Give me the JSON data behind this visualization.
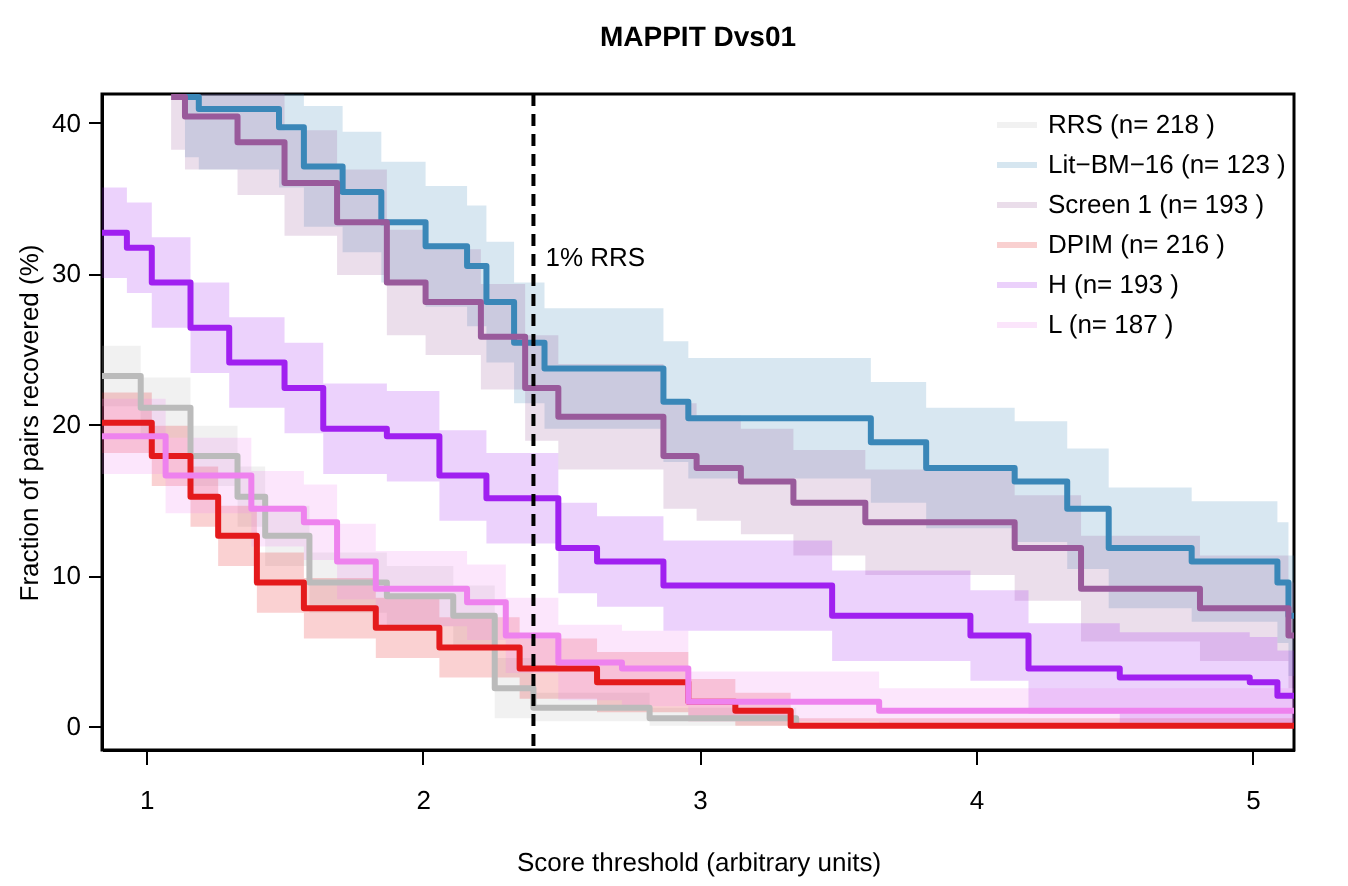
{
  "chart_data": {
    "type": "step",
    "title": "MAPPIT Dvs01",
    "xlabel": "Score threshold (arbitrary units)",
    "ylabel": "Fraction of pairs recovered (%)",
    "xlim": [
      0.84,
      5.15
    ],
    "ylim": [
      -1.6,
      41.9
    ],
    "xticks": [
      1,
      2,
      3,
      4,
      5
    ],
    "yticks": [
      0,
      10,
      20,
      30,
      40
    ],
    "grid": false,
    "legend": "top right",
    "line_style": "solid",
    "marker": "none",
    "ref_lines": [
      {
        "axis": "x",
        "value": 2.4,
        "label": "1% RRS",
        "line_style": "dashed",
        "color": "#000000"
      }
    ],
    "series": [
      {
        "name": "RRS (n= 218 )",
        "color": "#bbbbbb",
        "x": [
          0.84,
          0.98,
          1.16,
          1.33,
          1.43,
          1.59,
          1.87,
          2.11,
          2.26,
          2.4,
          2.82,
          3.35
        ],
        "values": [
          23.2,
          21.1,
          17.9,
          15.2,
          12.6,
          9.5,
          8.6,
          7.3,
          2.5,
          1.2,
          0.5,
          0
        ],
        "upper": [
          25.2,
          23.1,
          19.9,
          17.2,
          14.6,
          11.5,
          10.6,
          9.3,
          4.5,
          2.2,
          1.2,
          0.5
        ],
        "lower": [
          21.2,
          19.1,
          15.9,
          13.2,
          10.6,
          7.5,
          6.6,
          5.3,
          0.5,
          0.3,
          0,
          0
        ]
      },
      {
        "name": "Lit−BM−16 (n= 123 )",
        "color": "#3a87b8",
        "x": [
          1.14,
          1.19,
          1.48,
          1.57,
          1.71,
          1.85,
          2.01,
          2.16,
          2.23,
          2.33,
          2.44,
          2.72,
          2.87,
          2.96,
          3.62,
          3.82,
          4.14,
          4.33,
          4.48,
          4.78,
          5.09,
          5.13,
          5.15
        ],
        "values": [
          41.7,
          40.9,
          39.7,
          37.1,
          35.4,
          33.4,
          31.8,
          30.5,
          28.1,
          25.4,
          23.7,
          23.7,
          21.5,
          20.4,
          18.8,
          17.1,
          16.2,
          14.4,
          11.8,
          10.9,
          9.5,
          7.3,
          7.3
        ],
        "upper": [
          41.9,
          41.9,
          41.9,
          41.1,
          39.4,
          37.4,
          35.8,
          34.5,
          32.1,
          29.4,
          27.7,
          27.7,
          25.5,
          24.4,
          22.8,
          21.1,
          20.2,
          18.4,
          15.8,
          14.9,
          13.5,
          11.3,
          11.3
        ],
        "lower": [
          37.7,
          36.9,
          35.7,
          33.1,
          31.4,
          29.4,
          27.8,
          26.5,
          24.1,
          21.4,
          19.7,
          19.7,
          17.5,
          16.4,
          14.8,
          13.1,
          12.2,
          10.4,
          7.8,
          6.9,
          5.5,
          3.3,
          3.3
        ]
      },
      {
        "name": "Screen 1 (n= 193 )",
        "color": "#995a9b",
        "x": [
          1.09,
          1.14,
          1.33,
          1.5,
          1.69,
          1.87,
          2.01,
          2.21,
          2.37,
          2.49,
          2.87,
          2.99,
          3.15,
          3.34,
          3.6,
          4.14,
          4.38,
          4.81,
          5.13,
          5.15
        ],
        "values": [
          41.7,
          40.4,
          38.7,
          36.0,
          33.4,
          29.4,
          28.1,
          25.8,
          22.4,
          20.5,
          17.9,
          17.1,
          16.2,
          14.8,
          13.5,
          11.8,
          9.1,
          7.8,
          6.0,
          6.0
        ],
        "upper": [
          41.9,
          41.9,
          41.9,
          39.5,
          36.9,
          32.9,
          31.6,
          29.3,
          25.9,
          24.0,
          21.4,
          20.6,
          19.7,
          18.3,
          17.0,
          15.3,
          12.6,
          11.3,
          9.5,
          9.5
        ],
        "lower": [
          38.2,
          36.9,
          35.2,
          32.5,
          29.9,
          25.9,
          24.6,
          22.3,
          18.9,
          17.0,
          14.4,
          13.6,
          12.7,
          11.3,
          10.0,
          8.3,
          5.6,
          4.3,
          2.5,
          2.5
        ]
      },
      {
        "name": "DPIM (n= 216 )",
        "color": "#e41a1c",
        "x": [
          0.84,
          1.02,
          1.16,
          1.26,
          1.4,
          1.57,
          1.83,
          2.06,
          2.35,
          2.63,
          2.96,
          3.13,
          3.33,
          5.15
        ],
        "values": [
          20.1,
          17.9,
          15.2,
          12.6,
          9.5,
          7.8,
          6.5,
          5.2,
          3.8,
          2.9,
          1.6,
          1.0,
          0,
          0
        ],
        "upper": [
          22.1,
          19.9,
          17.2,
          14.6,
          11.5,
          9.8,
          8.5,
          7.2,
          5.8,
          4.9,
          3.1,
          2.2,
          0.5,
          0.5
        ],
        "lower": [
          18.1,
          15.9,
          13.2,
          10.6,
          7.5,
          5.8,
          4.5,
          3.2,
          1.8,
          0.9,
          0.3,
          0,
          0,
          0
        ]
      },
      {
        "name": "H (n= 193 )",
        "color": "#a020f0",
        "x": [
          0.84,
          0.93,
          1.02,
          1.16,
          1.3,
          1.5,
          1.64,
          1.87,
          2.06,
          2.23,
          2.49,
          2.63,
          2.87,
          3.48,
          3.98,
          4.19,
          4.52,
          4.99,
          5.09,
          5.15
        ],
        "values": [
          32.7,
          31.7,
          29.4,
          26.4,
          24.1,
          22.4,
          19.7,
          19.2,
          16.6,
          15.1,
          11.8,
          10.9,
          9.3,
          7.3,
          6.0,
          3.8,
          3.2,
          2.9,
          2.0,
          2.0
        ],
        "upper": [
          35.7,
          34.7,
          32.4,
          29.4,
          27.1,
          25.4,
          22.7,
          22.2,
          19.6,
          18.1,
          14.8,
          13.9,
          12.3,
          10.3,
          9.0,
          6.8,
          6.2,
          5.9,
          5.0,
          5.0
        ],
        "lower": [
          29.7,
          28.7,
          26.4,
          23.4,
          21.1,
          19.4,
          16.7,
          16.2,
          13.6,
          12.1,
          8.8,
          7.9,
          6.3,
          4.3,
          3.0,
          0.8,
          0.2,
          0,
          0,
          0
        ]
      },
      {
        "name": "L (n= 187 )",
        "color": "#ee82ee",
        "x": [
          0.84,
          1.07,
          1.38,
          1.57,
          1.69,
          1.83,
          2.16,
          2.3,
          2.49,
          2.72,
          2.96,
          3.65,
          5.15
        ],
        "values": [
          19.2,
          16.6,
          14.4,
          13.5,
          10.9,
          9.1,
          8.2,
          6.0,
          4.2,
          3.8,
          1.6,
          1.0,
          1.0
        ],
        "upper": [
          21.7,
          19.1,
          16.9,
          16.0,
          13.4,
          11.6,
          10.7,
          8.5,
          6.7,
          6.3,
          3.6,
          2.5,
          2.5
        ],
        "lower": [
          16.7,
          14.1,
          11.9,
          11.0,
          8.4,
          6.6,
          5.7,
          3.5,
          1.7,
          1.3,
          0.3,
          0.2,
          0.2
        ]
      }
    ]
  }
}
